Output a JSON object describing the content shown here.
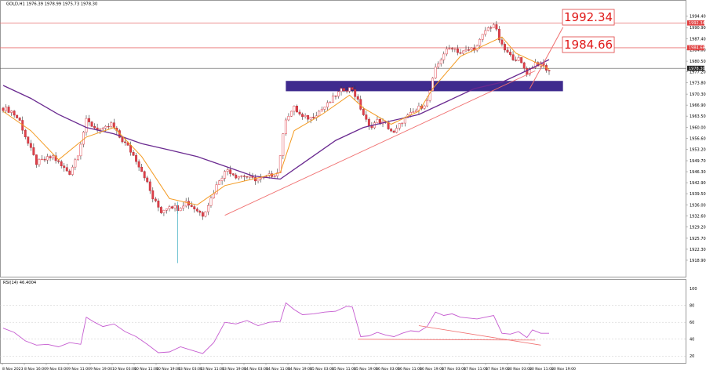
{
  "header": {
    "symbol_info": "GOLD,H1  1976.39 1978.99 1975.73 1978.30",
    "rsi_label": "RSI(14) 46.4004"
  },
  "colors": {
    "bull": "#e0404a",
    "bear": "#e0404a",
    "ma_fast": "#f39a21",
    "ma_slow": "#6a2a90",
    "rsi": "#c55bd0",
    "level_line": "#e87070",
    "zone": "#3f2b8e",
    "trendline": "#f07070",
    "annotation_text": "#e01818"
  },
  "chart_data": [
    {
      "type": "candlestick",
      "title": "",
      "xlabel": "",
      "ylabel": "",
      "ylim": [
        1915.5,
        1997.5
      ],
      "y_ticks": [
        "1994.40",
        "1990.90",
        "1987.40",
        "1984.00",
        "1980.50",
        "1977.20",
        "1973.80",
        "1970.30",
        "1966.90",
        "1963.50",
        "1960.00",
        "1956.60",
        "1953.20",
        "1949.70",
        "1946.30",
        "1942.90",
        "1939.50",
        "1936.00",
        "1932.60",
        "1929.20",
        "1925.70",
        "1922.30",
        "1918.90"
      ],
      "price_tags": [
        "1992.34",
        "1984.66",
        "1978.30"
      ],
      "x_tick_labels": [
        "8 Nov 2023",
        "8 Nov 16:00",
        "9 Nov 03:00",
        "9 Nov 11:00",
        "9 Nov 19:00",
        "10 Nov 03:00",
        "10 Nov 11:00",
        "10 Nov 19:00",
        "13 Nov 03:00",
        "13 Nov 11:00",
        "13 Nov 19:00",
        "14 Nov 03:00",
        "14 Nov 11:00",
        "14 Nov 19:00",
        "15 Nov 03:00",
        "15 Nov 11:00",
        "15 Nov 19:00",
        "16 Nov 03:00",
        "16 Nov 11:00",
        "16 Nov 19:00",
        "17 Nov 03:00",
        "17 Nov 11:00",
        "17 Nov 19:00",
        "20 Nov 03:00",
        "20 Nov 11:00",
        "20 Nov 19:00"
      ],
      "close_path": [
        [
          0,
          1966
        ],
        [
          3,
          1965
        ],
        [
          6,
          1962
        ],
        [
          9,
          1955
        ],
        [
          12,
          1949
        ],
        [
          15,
          1950
        ],
        [
          18,
          1951
        ],
        [
          21,
          1948
        ],
        [
          24,
          1946
        ],
        [
          27,
          1952
        ],
        [
          30,
          1962
        ],
        [
          33,
          1960
        ],
        [
          36,
          1959
        ],
        [
          39,
          1961
        ],
        [
          42,
          1957
        ],
        [
          45,
          1954
        ],
        [
          48,
          1950
        ],
        [
          51,
          1945
        ],
        [
          54,
          1938
        ],
        [
          57,
          1934
        ],
        [
          60,
          1936
        ],
        [
          63,
          1935
        ],
        [
          66,
          1937
        ],
        [
          69,
          1935
        ],
        [
          72,
          1933
        ],
        [
          75,
          1938
        ],
        [
          78,
          1944
        ],
        [
          81,
          1947
        ],
        [
          84,
          1945
        ],
        [
          87,
          1945
        ],
        [
          90,
          1944
        ],
        [
          93,
          1944
        ],
        [
          96,
          1945
        ],
        [
          99,
          1946
        ],
        [
          102,
          1963
        ],
        [
          105,
          1966
        ],
        [
          108,
          1963
        ],
        [
          111,
          1963
        ],
        [
          114,
          1965
        ],
        [
          117,
          1967
        ],
        [
          120,
          1970
        ],
        [
          123,
          1972
        ],
        [
          126,
          1972
        ],
        [
          129,
          1966
        ],
        [
          132,
          1960
        ],
        [
          135,
          1962
        ],
        [
          138,
          1961
        ],
        [
          141,
          1958
        ],
        [
          144,
          1962
        ],
        [
          147,
          1964
        ],
        [
          150,
          1966
        ],
        [
          153,
          1968
        ],
        [
          156,
          1978
        ],
        [
          159,
          1983
        ],
        [
          162,
          1985
        ],
        [
          165,
          1983
        ],
        [
          168,
          1984
        ],
        [
          171,
          1985
        ],
        [
          174,
          1990
        ],
        [
          177,
          1992
        ],
        [
          180,
          1985
        ],
        [
          183,
          1982
        ],
        [
          186,
          1981
        ],
        [
          189,
          1977
        ],
        [
          192,
          1980
        ],
        [
          195,
          1979
        ],
        [
          197,
          1977
        ]
      ],
      "ma_fast_path": [
        [
          0,
          1965
        ],
        [
          10,
          1959
        ],
        [
          20,
          1950
        ],
        [
          30,
          1957
        ],
        [
          40,
          1960
        ],
        [
          50,
          1951
        ],
        [
          60,
          1938
        ],
        [
          70,
          1936
        ],
        [
          80,
          1942
        ],
        [
          90,
          1944
        ],
        [
          100,
          1946
        ],
        [
          105,
          1959
        ],
        [
          115,
          1964
        ],
        [
          125,
          1970
        ],
        [
          130,
          1966
        ],
        [
          140,
          1961
        ],
        [
          150,
          1965
        ],
        [
          155,
          1972
        ],
        [
          165,
          1982
        ],
        [
          175,
          1986
        ],
        [
          180,
          1988
        ],
        [
          185,
          1983
        ],
        [
          195,
          1979
        ],
        [
          197,
          1978
        ]
      ],
      "ma_slow_path": [
        [
          0,
          1973
        ],
        [
          10,
          1969
        ],
        [
          20,
          1964
        ],
        [
          30,
          1960
        ],
        [
          40,
          1958
        ],
        [
          50,
          1955
        ],
        [
          60,
          1953
        ],
        [
          70,
          1951
        ],
        [
          80,
          1948
        ],
        [
          90,
          1945
        ],
        [
          100,
          1944
        ],
        [
          110,
          1950
        ],
        [
          120,
          1956
        ],
        [
          130,
          1960
        ],
        [
          140,
          1962
        ],
        [
          150,
          1964
        ],
        [
          160,
          1968
        ],
        [
          170,
          1972
        ],
        [
          180,
          1974
        ],
        [
          190,
          1978
        ],
        [
          197,
          1981
        ]
      ],
      "levels": [
        1992.34,
        1984.66
      ],
      "current_price_line": 1978.3,
      "supply_zone": {
        "x_from": 102,
        "x_to": 202,
        "y_high": 1974.4,
        "y_low": 1971.2
      },
      "trendline": [
        [
          80,
          1932.8
        ],
        [
          192,
          1977.5
        ]
      ],
      "arrow": [
        [
          190,
          1972
        ],
        [
          202,
          1991
        ]
      ]
    },
    {
      "type": "line",
      "title": "",
      "ylim": [
        12,
        100
      ],
      "y_ticks": [
        "100",
        "80",
        "60",
        "40",
        "20"
      ],
      "rsi_path": [
        [
          0,
          53
        ],
        [
          4,
          48
        ],
        [
          8,
          38
        ],
        [
          12,
          33
        ],
        [
          16,
          34
        ],
        [
          20,
          31
        ],
        [
          24,
          36
        ],
        [
          28,
          34
        ],
        [
          30,
          66
        ],
        [
          33,
          60
        ],
        [
          36,
          55
        ],
        [
          40,
          58
        ],
        [
          44,
          49
        ],
        [
          48,
          43
        ],
        [
          52,
          34
        ],
        [
          56,
          24
        ],
        [
          60,
          25
        ],
        [
          64,
          31
        ],
        [
          68,
          27
        ],
        [
          72,
          23
        ],
        [
          76,
          36
        ],
        [
          80,
          60
        ],
        [
          84,
          58
        ],
        [
          88,
          62
        ],
        [
          92,
          56
        ],
        [
          96,
          60
        ],
        [
          100,
          61
        ],
        [
          102,
          83
        ],
        [
          105,
          75
        ],
        [
          108,
          69
        ],
        [
          112,
          70
        ],
        [
          116,
          72
        ],
        [
          120,
          73
        ],
        [
          124,
          79
        ],
        [
          126,
          78
        ],
        [
          129,
          43
        ],
        [
          132,
          44
        ],
        [
          135,
          48
        ],
        [
          138,
          45
        ],
        [
          141,
          43
        ],
        [
          144,
          47
        ],
        [
          147,
          50
        ],
        [
          150,
          49
        ],
        [
          153,
          55
        ],
        [
          156,
          72
        ],
        [
          159,
          68
        ],
        [
          162,
          70
        ],
        [
          165,
          66
        ],
        [
          168,
          65
        ],
        [
          171,
          64
        ],
        [
          174,
          66
        ],
        [
          177,
          68
        ],
        [
          180,
          47
        ],
        [
          183,
          46
        ],
        [
          186,
          49
        ],
        [
          189,
          42
        ],
        [
          191,
          51
        ],
        [
          194,
          47
        ],
        [
          197,
          47
        ]
      ],
      "trendline_a": [
        [
          128,
          40
        ],
        [
          192,
          39
        ]
      ],
      "trendline_b": [
        [
          150,
          56
        ],
        [
          194,
          33
        ]
      ]
    }
  ],
  "annotations": [
    {
      "text": "1992.34",
      "price": 1992.34
    },
    {
      "text": "1984.66",
      "price": 1984.66
    }
  ]
}
